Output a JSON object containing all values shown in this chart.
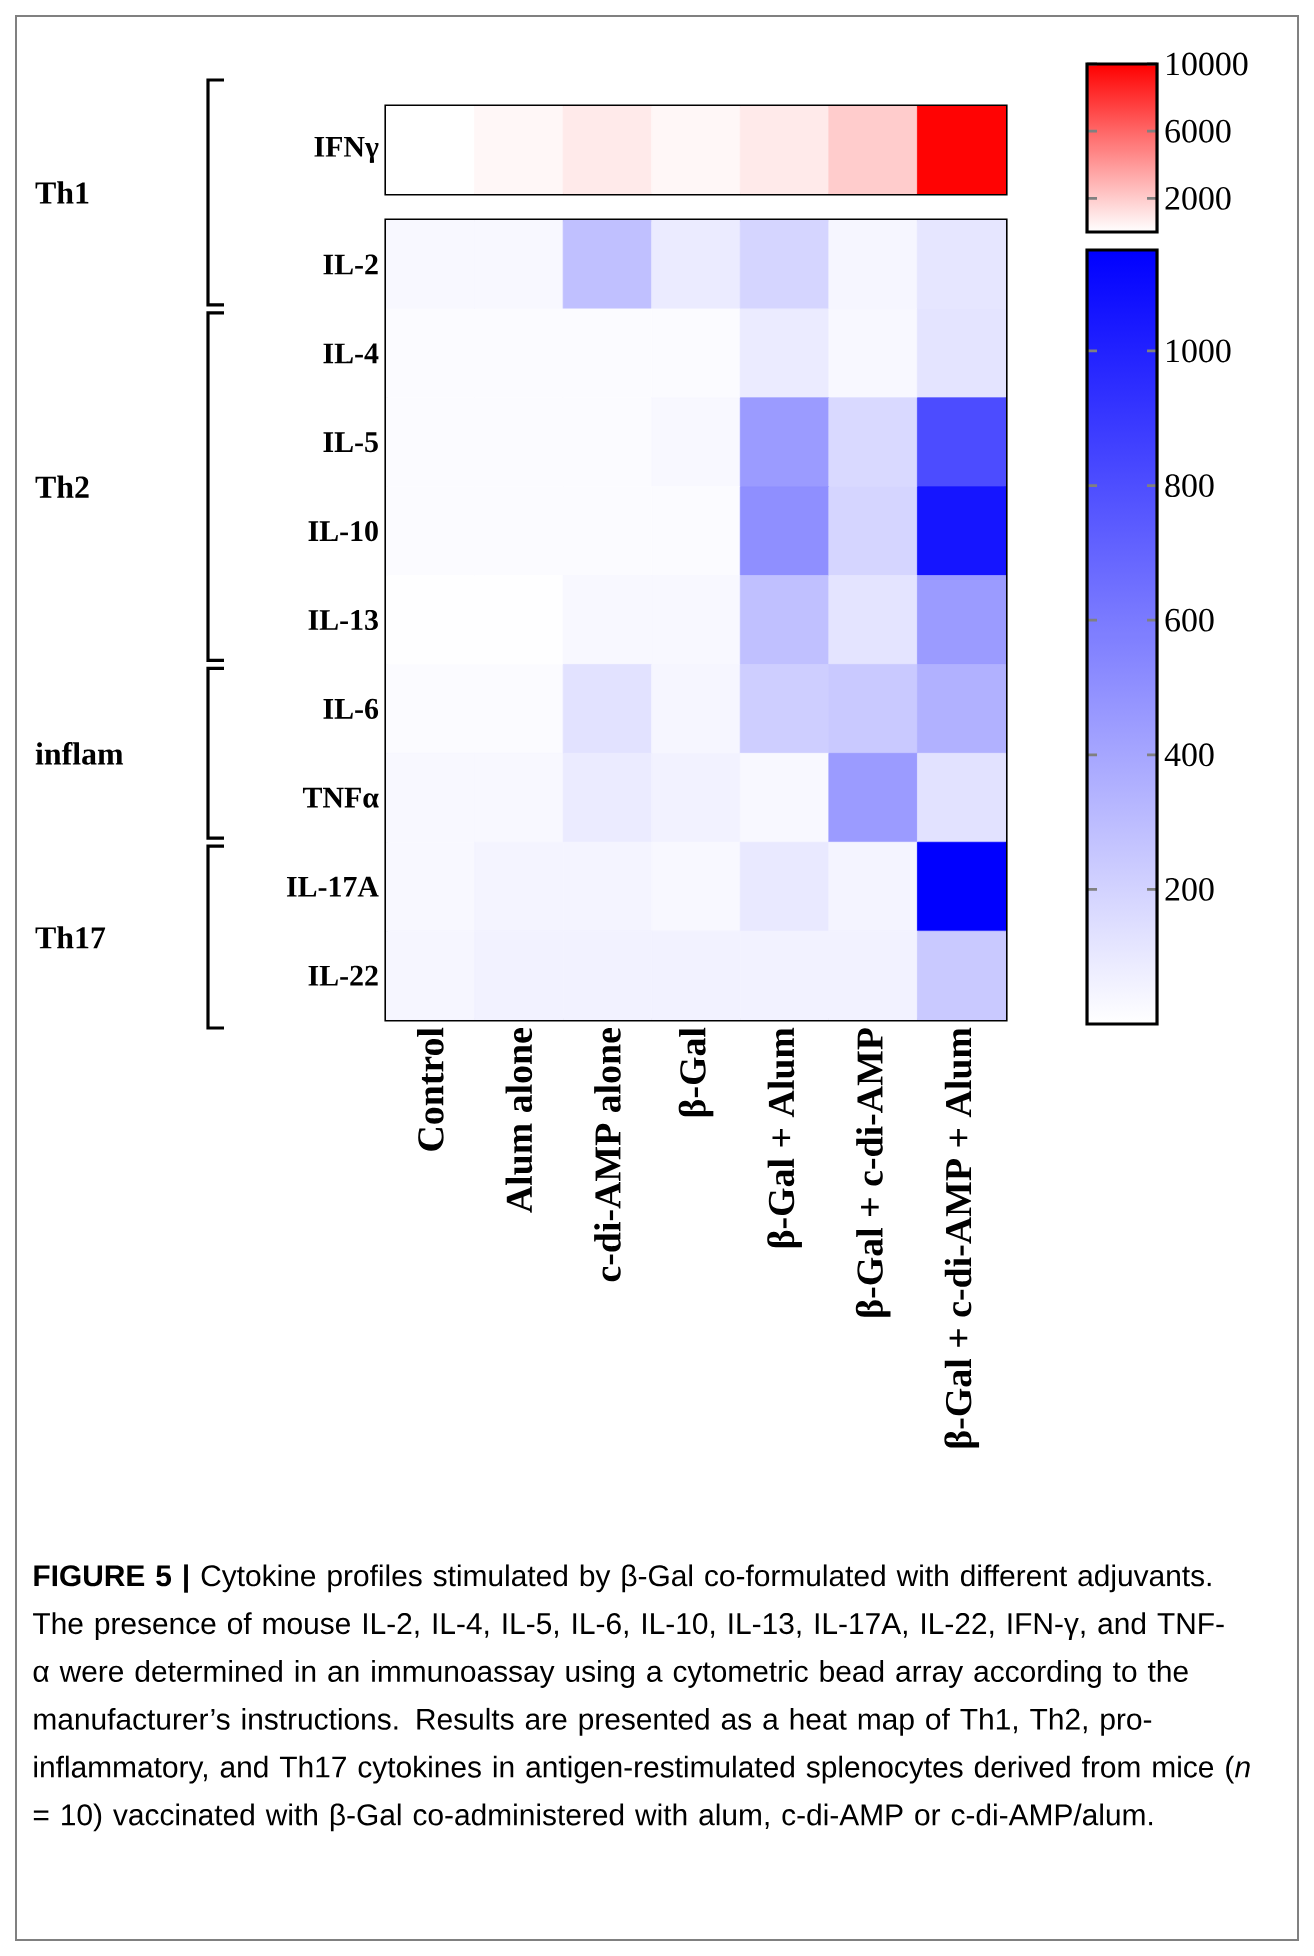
{
  "chart_data": [
    {
      "type": "heatmap",
      "color": "#ff0000",
      "categories": [
        null,
        null,
        null,
        null,
        null,
        null,
        null
      ],
      "y_categories": [
        "IFNγ"
      ],
      "cells": [
        [
          0,
          300,
          800,
          300,
          800,
          2000,
          9800
        ]
      ],
      "clim": [
        0,
        10000
      ],
      "cticks": [
        2000,
        6000,
        10000
      ],
      "tick_labels": "y",
      "annotations": [
        "Th1"
      ]
    },
    {
      "type": "heatmap",
      "color": "#0000ff",
      "categories": [
        "Control",
        "Alum alone",
        "c-di-AMP alone",
        "β-Gal",
        "β-Gal + Alum",
        "β-Gal + c-di-AMP",
        "β-Gal + c-di-AMP + Alum"
      ],
      "y_categories": [
        "IL-2",
        "IL-4",
        "IL-5",
        "IL-10",
        "IL-13",
        "IL-6",
        "TNFα",
        "IL-17A",
        "IL-22"
      ],
      "cells": [
        [
          30,
          30,
          280,
          90,
          190,
          40,
          110
        ],
        [
          20,
          20,
          20,
          20,
          90,
          30,
          120
        ],
        [
          20,
          20,
          20,
          30,
          450,
          170,
          800
        ],
        [
          20,
          20,
          20,
          20,
          500,
          190,
          1050
        ],
        [
          5,
          5,
          30,
          30,
          280,
          120,
          450
        ],
        [
          20,
          20,
          130,
          40,
          220,
          240,
          350
        ],
        [
          30,
          30,
          90,
          60,
          30,
          450,
          130
        ],
        [
          30,
          50,
          50,
          30,
          100,
          50,
          1140
        ],
        [
          40,
          60,
          60,
          60,
          60,
          60,
          240
        ]
      ],
      "clim": [
        0,
        1150
      ],
      "cticks": [
        200,
        400,
        600,
        800,
        1000
      ],
      "annotations": [
        "Th2",
        "inflam",
        "Th17",
        "**FIGURE 5 |** Cytokine profiles stimulated by β-Gal co-formulated with different adjuvants. The presence of mouse IL-2, IL-4, IL-5, IL-6, IL-10, IL-13, IL-17A, IL-22, IFN-γ, and TNF-α were determined in an immunoassay using a cytometric bead array according to the manufacturer’s instructions. Results are presented as a heat map of Th1, Th2, pro-inflammatory, and Th17 cytokines in antigen-restimulated splenocytes derived from mice (*n* = 10) vaccinated with β-Gal co-administered with alum, c-di-AMP or c-di-AMP/alum."
      ]
    }
  ]
}
